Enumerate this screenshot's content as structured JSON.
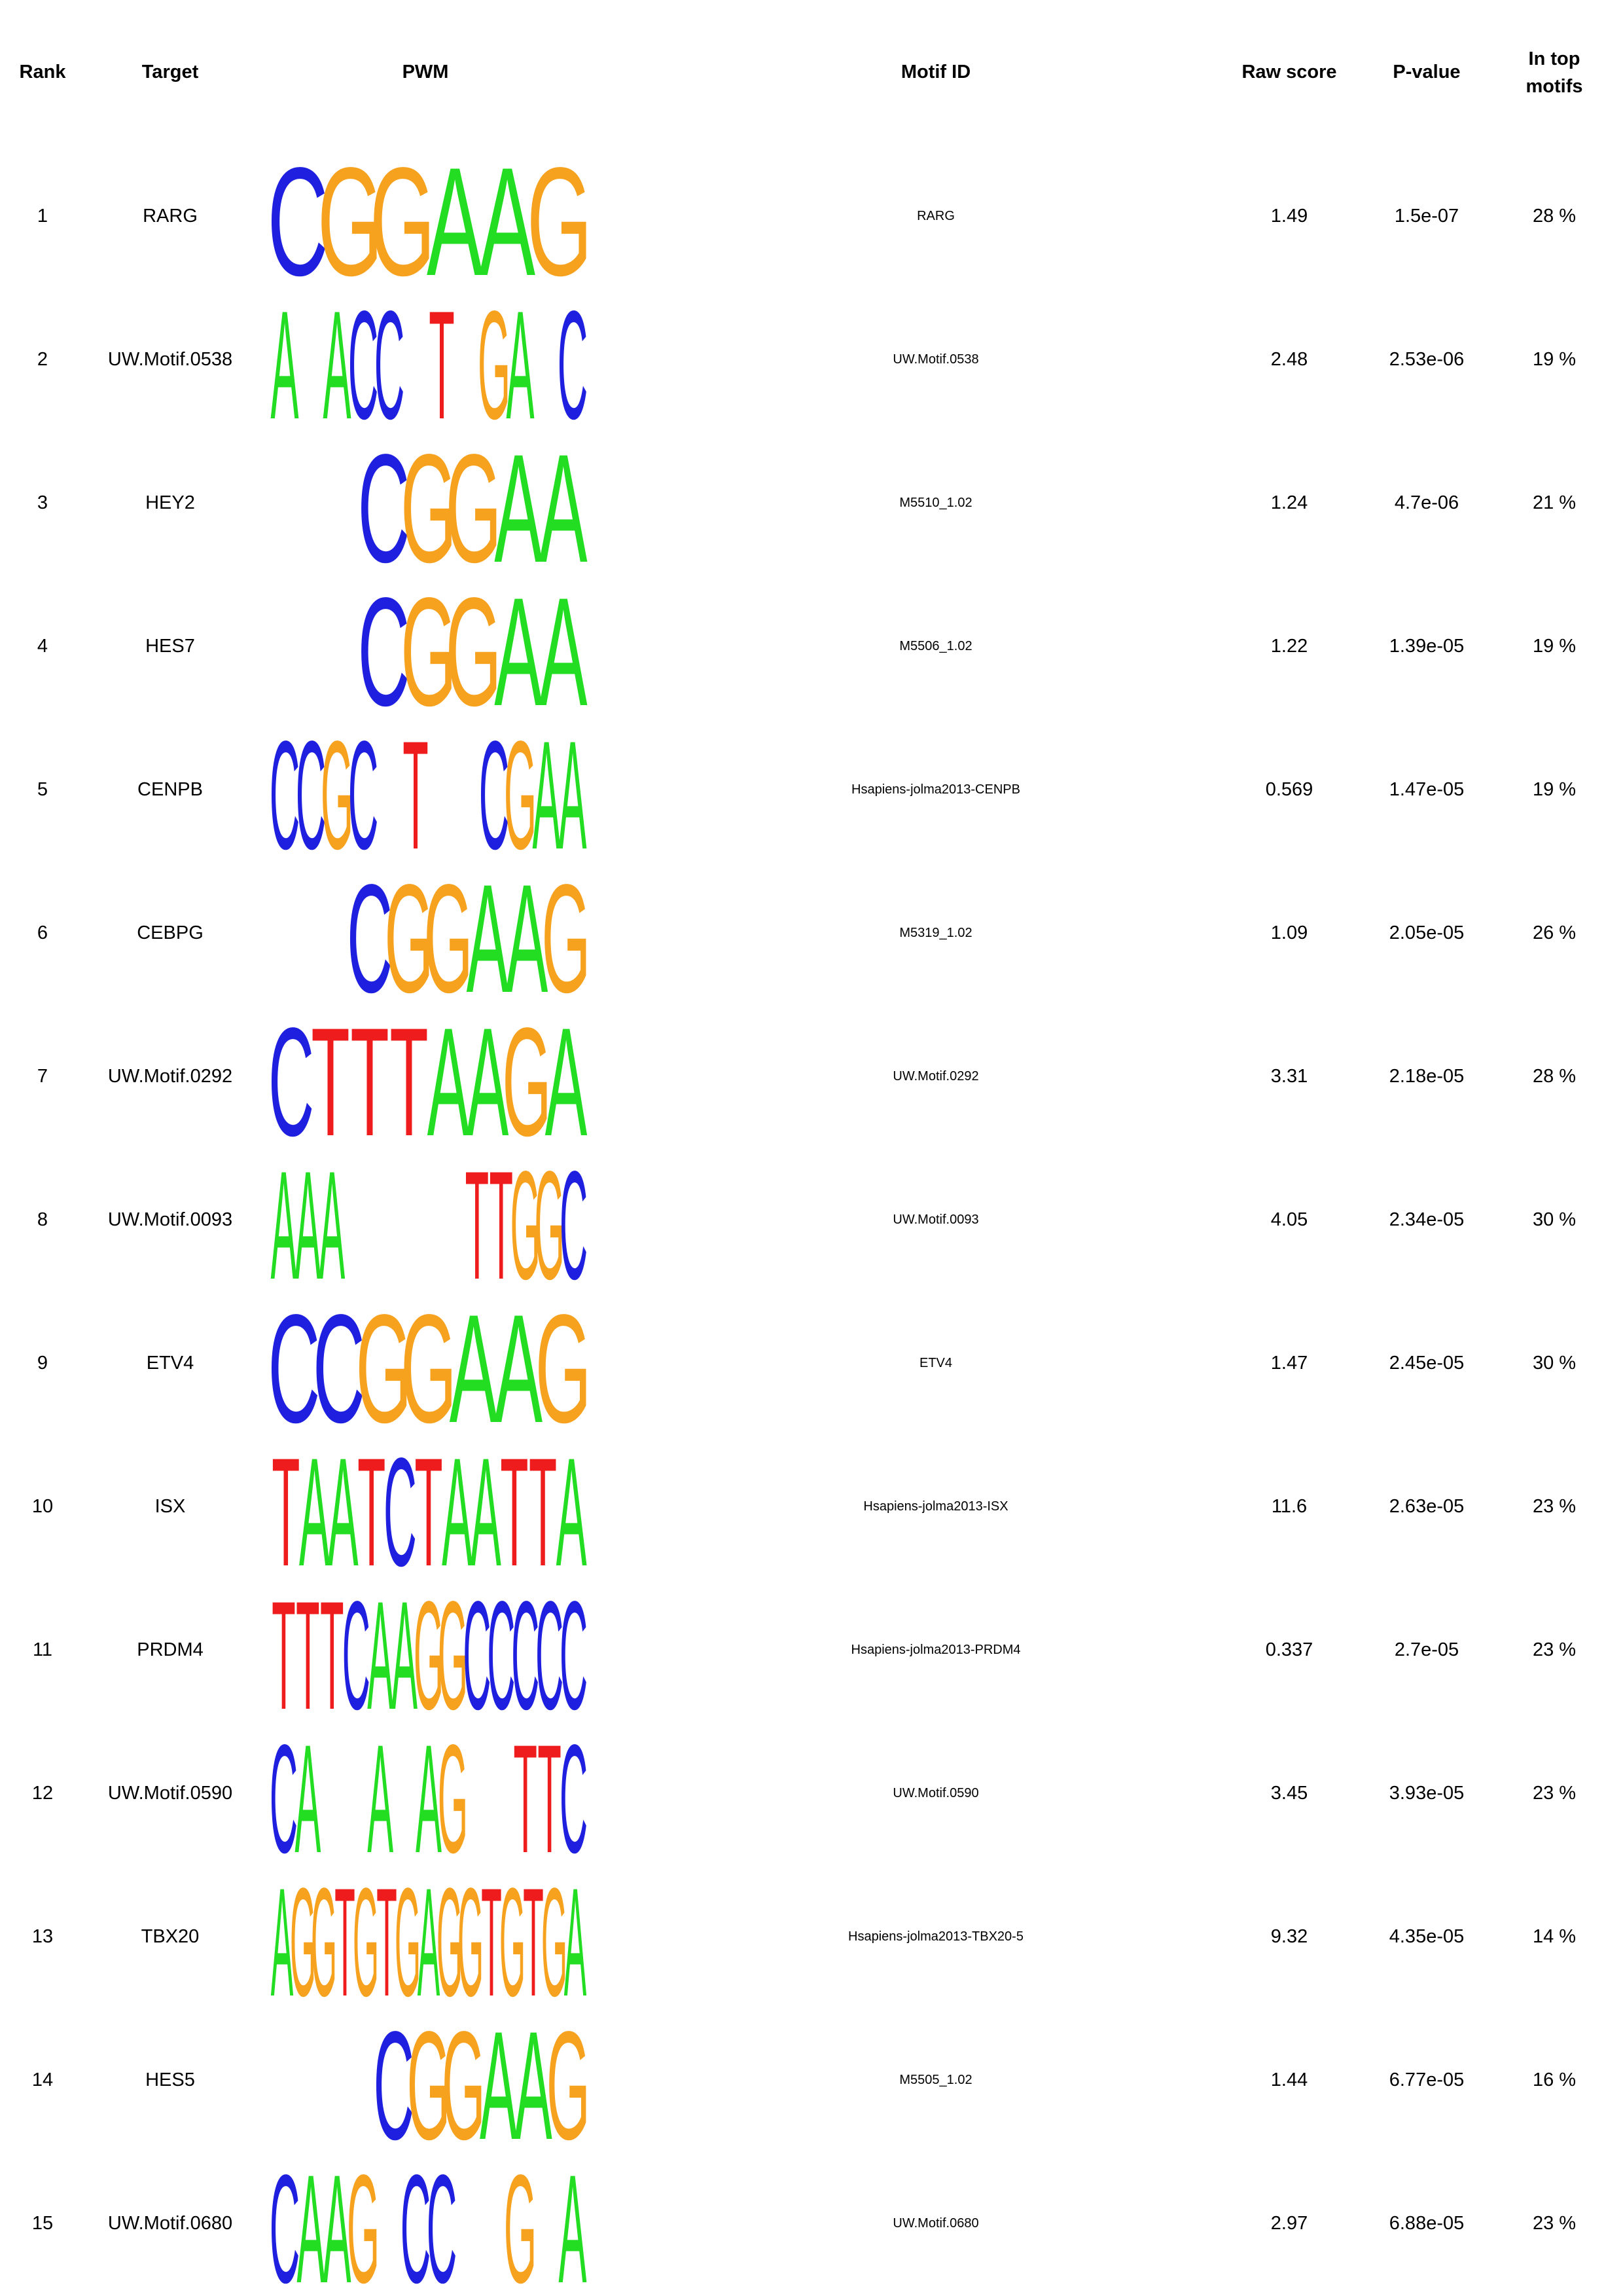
{
  "headers": {
    "rank": "Rank",
    "target": "Target",
    "pwm": "PWM",
    "motif_id": "Motif ID",
    "raw_score": "Raw score",
    "p_value": "P-value",
    "in_top_line1": "In top",
    "in_top_line2": "motifs"
  },
  "colors": {
    "A": "#22dd22",
    "C": "#1f1fe0",
    "G": "#f6a21e",
    "T": "#ee1c1c"
  },
  "rows": [
    {
      "rank": "1",
      "target": "RARG",
      "motif_id": "RARG",
      "raw": "1.49",
      "pval": "1.5e-07",
      "top": "28 %",
      "logo": "CGGAAG"
    },
    {
      "rank": "2",
      "target": "UW.Motif.0538",
      "motif_id": "UW.Motif.0538",
      "raw": "2.48",
      "pval": "2.53e-06",
      "top": "19 %",
      "logo": "A ACC T GA C"
    },
    {
      "rank": "3",
      "target": "HEY2",
      "motif_id": "M5510_1.02",
      "raw": "1.24",
      "pval": "4.7e-06",
      "top": "21 %",
      "logo": "  CGGAA"
    },
    {
      "rank": "4",
      "target": "HES7",
      "motif_id": "M5506_1.02",
      "raw": "1.22",
      "pval": "1.39e-05",
      "top": "19 %",
      "logo": "  CGGAA"
    },
    {
      "rank": "5",
      "target": "CENPB",
      "motif_id": "Hsapiens-jolma2013-CENPB",
      "raw": "0.569",
      "pval": "1.47e-05",
      "top": "19 %",
      "logo": "CCGC T  CGAA"
    },
    {
      "rank": "6",
      "target": "CEBPG",
      "motif_id": "M5319_1.02",
      "raw": "1.09",
      "pval": "2.05e-05",
      "top": "26 %",
      "logo": "  CGGAAG"
    },
    {
      "rank": "7",
      "target": "UW.Motif.0292",
      "motif_id": "UW.Motif.0292",
      "raw": "3.31",
      "pval": "2.18e-05",
      "top": "28 %",
      "logo": "CTTTAAGA"
    },
    {
      "rank": "8",
      "target": "UW.Motif.0093",
      "motif_id": "UW.Motif.0093",
      "raw": "4.05",
      "pval": "2.34e-05",
      "top": "30 %",
      "logo": "AAA     TTGGC"
    },
    {
      "rank": "9",
      "target": "ETV4",
      "motif_id": "ETV4",
      "raw": "1.47",
      "pval": "2.45e-05",
      "top": "30 %",
      "logo": "CCGGAAG"
    },
    {
      "rank": "10",
      "target": "ISX",
      "motif_id": "Hsapiens-jolma2013-ISX",
      "raw": "11.6",
      "pval": "2.63e-05",
      "top": "23 %",
      "logo": "TAATCTAATTA"
    },
    {
      "rank": "11",
      "target": "PRDM4",
      "motif_id": "Hsapiens-jolma2013-PRDM4",
      "raw": "0.337",
      "pval": "2.7e-05",
      "top": "23 %",
      "logo": "TTTCAAGGCCCCC"
    },
    {
      "rank": "12",
      "target": "UW.Motif.0590",
      "motif_id": "UW.Motif.0590",
      "raw": "3.45",
      "pval": "3.93e-05",
      "top": "23 %",
      "logo": "CA  A AG  TTC"
    },
    {
      "rank": "13",
      "target": "TBX20",
      "motif_id": "Hsapiens-jolma2013-TBX20-5",
      "raw": "9.32",
      "pval": "4.35e-05",
      "top": "14 %",
      "logo": "AGGTGTGAGGTGTGA"
    },
    {
      "rank": "14",
      "target": "HES5",
      "motif_id": "M5505_1.02",
      "raw": "1.44",
      "pval": "6.77e-05",
      "top": "16 %",
      "logo": "   CGGAAG"
    },
    {
      "rank": "15",
      "target": "UW.Motif.0680",
      "motif_id": "UW.Motif.0680",
      "raw": "2.97",
      "pval": "6.88e-05",
      "top": "23 %",
      "logo": "CAAG CC  G A"
    }
  ]
}
